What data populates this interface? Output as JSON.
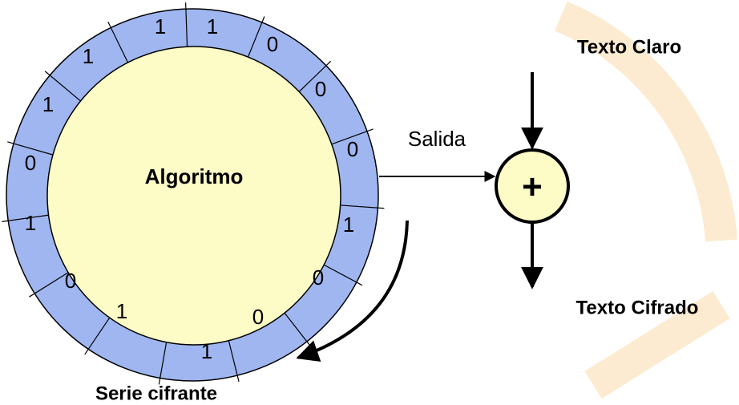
{
  "diagram": {
    "generator": {
      "label": "Algoritmo",
      "bits": [
        "1",
        "1",
        "1",
        "0",
        "0",
        "0",
        "1",
        "0",
        "0",
        "1",
        "1",
        "0",
        "1",
        "0",
        "1"
      ]
    },
    "output_label": "Salida",
    "xor": {
      "symbol": "+"
    },
    "plaintext": "Texto Claro",
    "ciphertext": "Texto Cifrado",
    "keystream": "Serie cifrante"
  }
}
